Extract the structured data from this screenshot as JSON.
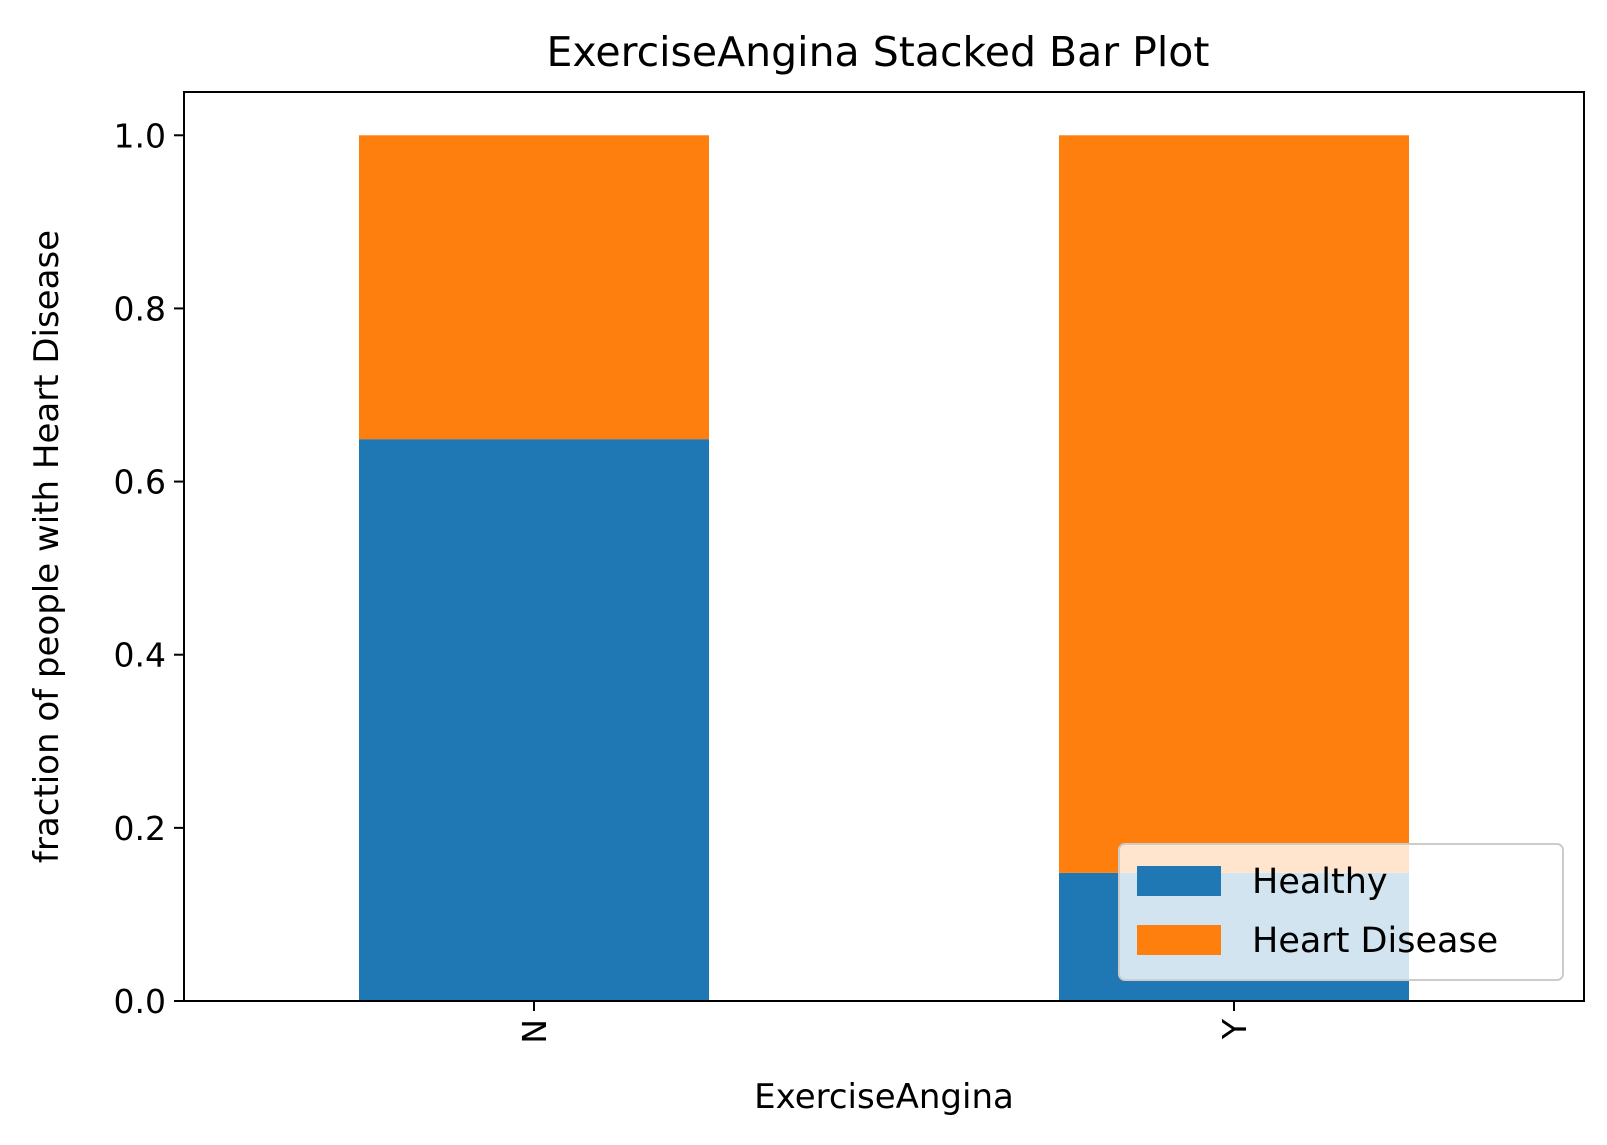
{
  "chart_data": {
    "type": "bar",
    "stacked": true,
    "title": "ExerciseAngina Stacked Bar Plot",
    "xlabel": "ExerciseAngina",
    "ylabel": "fraction of people with Heart Disease",
    "categories": [
      "N",
      "Y"
    ],
    "series": [
      {
        "name": "Healthy",
        "values": [
          0.649,
          0.148
        ],
        "color": "#1f77b4"
      },
      {
        "name": "Heart Disease",
        "values": [
          0.351,
          0.852
        ],
        "color": "#ff7f0e"
      }
    ],
    "ylim": [
      0,
      1.05
    ],
    "yticks": [
      0.0,
      0.2,
      0.4,
      0.6,
      0.8,
      1.0
    ],
    "ytick_labels": [
      "0.0",
      "0.2",
      "0.4",
      "0.6",
      "0.8",
      "1.0"
    ],
    "xtick_rotation": 90,
    "grid": false,
    "legend": {
      "position": "lower-right"
    }
  }
}
